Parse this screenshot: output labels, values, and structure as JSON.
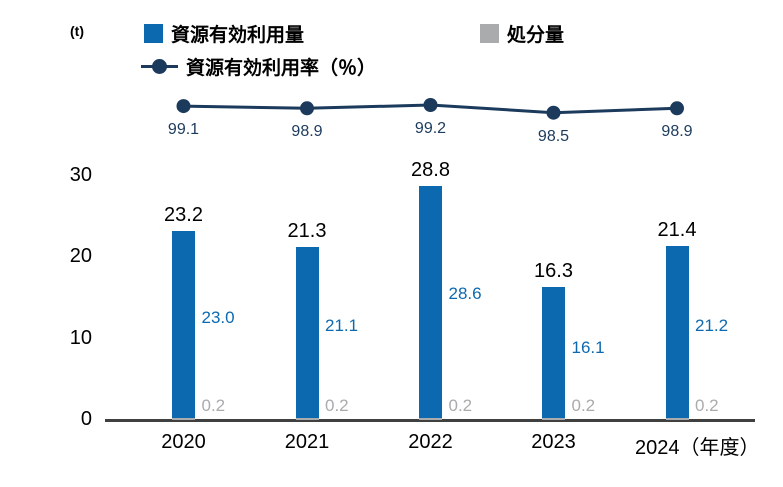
{
  "chart_data": {
    "type": "bar",
    "stacked": true,
    "title": "",
    "unit_label": "(t)",
    "categories": [
      "2020",
      "2021",
      "2022",
      "2023",
      "2024"
    ],
    "x_axis_suffix": "（年度）",
    "series": [
      {
        "name": "資源有効利用量",
        "type": "bar",
        "color": "#0c69b0",
        "values": [
          23.0,
          21.1,
          28.6,
          16.1,
          21.2
        ]
      },
      {
        "name": "処分量",
        "type": "bar",
        "color": "#a9abad",
        "values": [
          0.2,
          0.2,
          0.2,
          0.2,
          0.2
        ]
      },
      {
        "name": "資源有効利用率（％）",
        "type": "line",
        "color": "#1b3a5c",
        "values": [
          99.1,
          98.9,
          99.2,
          98.5,
          98.9
        ]
      }
    ],
    "totals": [
      23.2,
      21.3,
      28.8,
      16.3,
      21.4
    ],
    "ylim": [
      0,
      30
    ],
    "yticks": [
      0,
      10,
      20,
      30
    ],
    "grid": false,
    "legend_position": "top",
    "colors": {
      "bar_blue": "#0c69b0",
      "disposal_gray": "#a9abad",
      "line_navy": "#1b3a5c",
      "axis": "#404040",
      "value_blue": "#0c69b0",
      "value_gray": "#a9abad",
      "pct_navy": "#1b3a5c"
    }
  }
}
